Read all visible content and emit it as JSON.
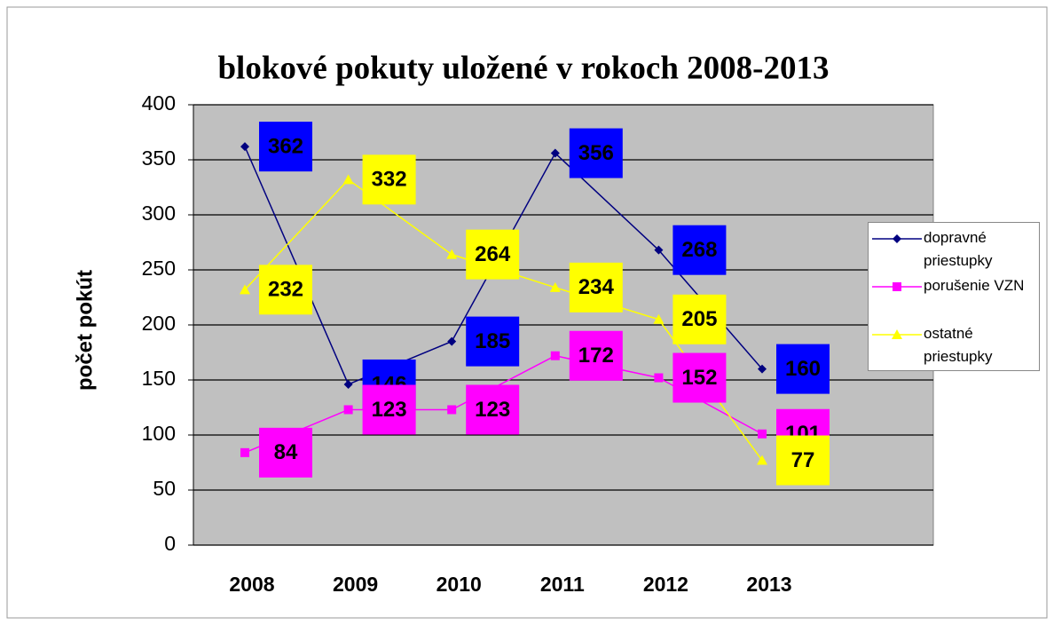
{
  "chart_data": {
    "type": "line",
    "title": "blokové pokuty uložené v rokoch 2008-2013",
    "y_label": "počet pokút",
    "categories": [
      "2008",
      "2009",
      "2010",
      "2011",
      "2012",
      "2013"
    ],
    "series": [
      {
        "name": "dopravné priestupky",
        "color": "#000080",
        "label_color": "#0000ff",
        "marker": "diamond",
        "values": [
          362,
          146,
          185,
          356,
          268,
          160
        ]
      },
      {
        "name": "porušenie VZN",
        "color": "#ff00ff",
        "label_color": "#ff00ff",
        "marker": "square",
        "values": [
          84,
          123,
          123,
          172,
          152,
          101
        ]
      },
      {
        "name": "ostatné priestupky",
        "color": "#ffff00",
        "label_color": "#ffff00",
        "marker": "triangle",
        "values": [
          232,
          332,
          264,
          234,
          205,
          77
        ]
      }
    ],
    "ylim": [
      0,
      400
    ],
    "yticks": [
      0,
      50,
      100,
      150,
      200,
      250,
      300,
      350,
      400
    ],
    "grid": true,
    "legend": "right"
  }
}
